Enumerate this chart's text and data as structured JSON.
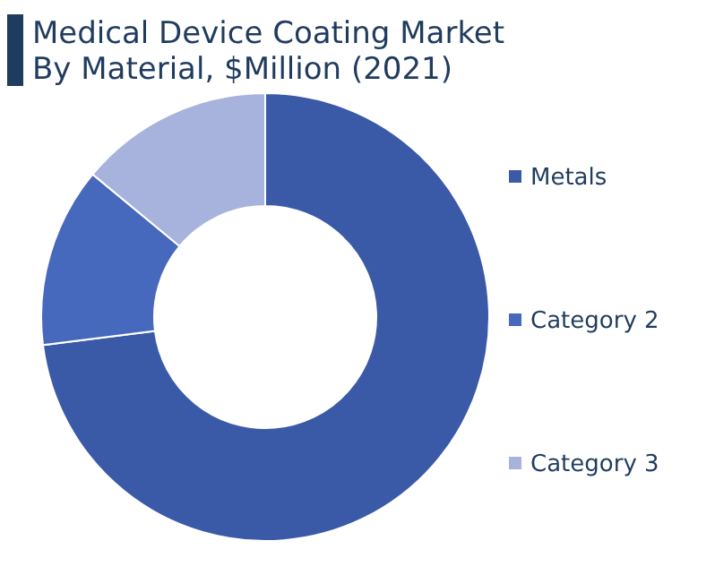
{
  "chart_data": {
    "type": "donut",
    "title": "Medical Device Coating Market\nBy Material, $Million (2021)",
    "categories": [
      "Metals",
      "Category 2",
      "Category 3"
    ],
    "values": [
      73,
      13,
      14
    ],
    "colors": [
      "#3a5aa8",
      "#4668bd",
      "#a7b3dc"
    ],
    "legend": "right"
  }
}
